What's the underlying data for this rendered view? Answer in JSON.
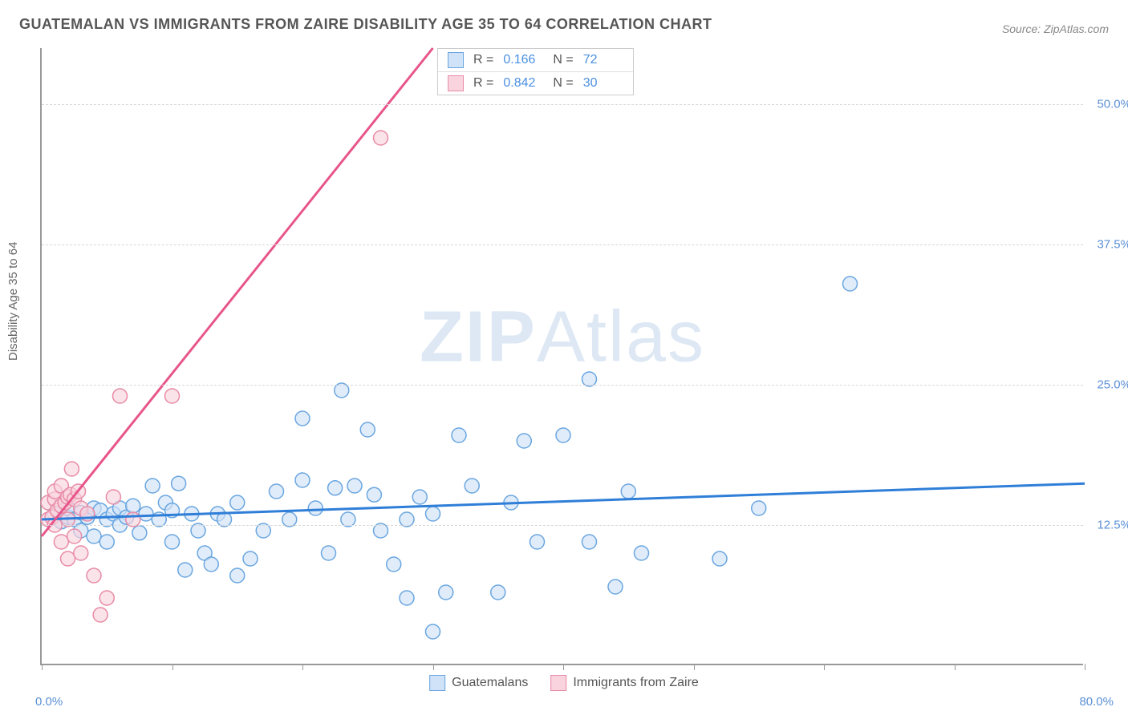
{
  "title": "GUATEMALAN VS IMMIGRANTS FROM ZAIRE DISABILITY AGE 35 TO 64 CORRELATION CHART",
  "source": "Source: ZipAtlas.com",
  "y_axis_label": "Disability Age 35 to 64",
  "watermark_a": "ZIP",
  "watermark_b": "Atlas",
  "chart": {
    "type": "scatter",
    "xlim": [
      0,
      80
    ],
    "ylim": [
      0,
      55
    ],
    "x_tick_positions": [
      0,
      10,
      20,
      30,
      40,
      50,
      60,
      70,
      80
    ],
    "x_label_start": "0.0%",
    "x_label_end": "80.0%",
    "y_gridlines": [
      12.5,
      25.0,
      37.5,
      50.0
    ],
    "y_tick_labels": [
      "12.5%",
      "25.0%",
      "37.5%",
      "50.0%"
    ],
    "background_color": "#ffffff",
    "grid_color": "#d8d8d8",
    "axis_color": "#999999",
    "tick_label_color": "#5b8fd6",
    "series": [
      {
        "name": "Guatemalans",
        "color_fill": "#cfe2f7",
        "color_stroke": "#6aa6e0",
        "line_color": "#2f7ed8",
        "marker_radius": 9,
        "marker_opacity": 0.65,
        "R": "0.166",
        "N": "72",
        "trend": {
          "x1": 0,
          "y1": 13.0,
          "x2": 80,
          "y2": 16.2
        },
        "points": [
          [
            1,
            13.5
          ],
          [
            1.5,
            12.8
          ],
          [
            2,
            13.2
          ],
          [
            2,
            14
          ],
          [
            2.5,
            13
          ],
          [
            3,
            12
          ],
          [
            3,
            13.6
          ],
          [
            3.5,
            13.2
          ],
          [
            4,
            14
          ],
          [
            4,
            11.5
          ],
          [
            4.5,
            13.8
          ],
          [
            5,
            13
          ],
          [
            5,
            11
          ],
          [
            5.5,
            13.5
          ],
          [
            6,
            14
          ],
          [
            6,
            12.5
          ],
          [
            6.5,
            13.2
          ],
          [
            7,
            14.2
          ],
          [
            7.5,
            11.8
          ],
          [
            8,
            13.5
          ],
          [
            8.5,
            16
          ],
          [
            9,
            13
          ],
          [
            9.5,
            14.5
          ],
          [
            10,
            11
          ],
          [
            10,
            13.8
          ],
          [
            10.5,
            16.2
          ],
          [
            11,
            8.5
          ],
          [
            11.5,
            13.5
          ],
          [
            12,
            12
          ],
          [
            12.5,
            10
          ],
          [
            13,
            9
          ],
          [
            13.5,
            13.5
          ],
          [
            14,
            13
          ],
          [
            15,
            8
          ],
          [
            15,
            14.5
          ],
          [
            16,
            9.5
          ],
          [
            17,
            12
          ],
          [
            18,
            15.5
          ],
          [
            19,
            13
          ],
          [
            20,
            22
          ],
          [
            20,
            16.5
          ],
          [
            21,
            14
          ],
          [
            22,
            10
          ],
          [
            22.5,
            15.8
          ],
          [
            23,
            24.5
          ],
          [
            23.5,
            13
          ],
          [
            24,
            16
          ],
          [
            25,
            21
          ],
          [
            25.5,
            15.2
          ],
          [
            26,
            12
          ],
          [
            27,
            9
          ],
          [
            28,
            6
          ],
          [
            28,
            13
          ],
          [
            29,
            15
          ],
          [
            30,
            3
          ],
          [
            30,
            13.5
          ],
          [
            31,
            6.5
          ],
          [
            32,
            20.5
          ],
          [
            33,
            16
          ],
          [
            35,
            6.5
          ],
          [
            36,
            14.5
          ],
          [
            37,
            20
          ],
          [
            38,
            11
          ],
          [
            40,
            20.5
          ],
          [
            42,
            25.5
          ],
          [
            42,
            11
          ],
          [
            44,
            7
          ],
          [
            45,
            15.5
          ],
          [
            46,
            10
          ],
          [
            52,
            9.5
          ],
          [
            55,
            14
          ],
          [
            62,
            34
          ]
        ]
      },
      {
        "name": "Immigrants from Zaire",
        "color_fill": "#f9d4de",
        "color_stroke": "#e88ba5",
        "line_color": "#e8558a",
        "marker_radius": 9,
        "marker_opacity": 0.65,
        "R": "0.842",
        "N": "30",
        "trend": {
          "x1": 0,
          "y1": 11.5,
          "x2": 30,
          "y2": 55
        },
        "points": [
          [
            0.5,
            13
          ],
          [
            0.5,
            14.5
          ],
          [
            0.8,
            13.2
          ],
          [
            1,
            14.8
          ],
          [
            1,
            12.5
          ],
          [
            1,
            15.5
          ],
          [
            1.2,
            13.8
          ],
          [
            1.5,
            14.2
          ],
          [
            1.5,
            16
          ],
          [
            1.5,
            11
          ],
          [
            1.8,
            14.5
          ],
          [
            2,
            15
          ],
          [
            2,
            13
          ],
          [
            2,
            9.5
          ],
          [
            2.2,
            15.2
          ],
          [
            2.3,
            17.5
          ],
          [
            2.5,
            14.8
          ],
          [
            2.5,
            11.5
          ],
          [
            2.8,
            15.5
          ],
          [
            3,
            14
          ],
          [
            3,
            10
          ],
          [
            3.5,
            13.5
          ],
          [
            4,
            8
          ],
          [
            4.5,
            4.5
          ],
          [
            5,
            6
          ],
          [
            5.5,
            15
          ],
          [
            6,
            24
          ],
          [
            7,
            13
          ],
          [
            10,
            24
          ],
          [
            26,
            47
          ]
        ]
      }
    ]
  },
  "stats_legend": {
    "R_label": "R  =",
    "N_label": "N  ="
  },
  "bottom_legend": {
    "items": [
      "Guatemalans",
      "Immigrants from Zaire"
    ]
  }
}
